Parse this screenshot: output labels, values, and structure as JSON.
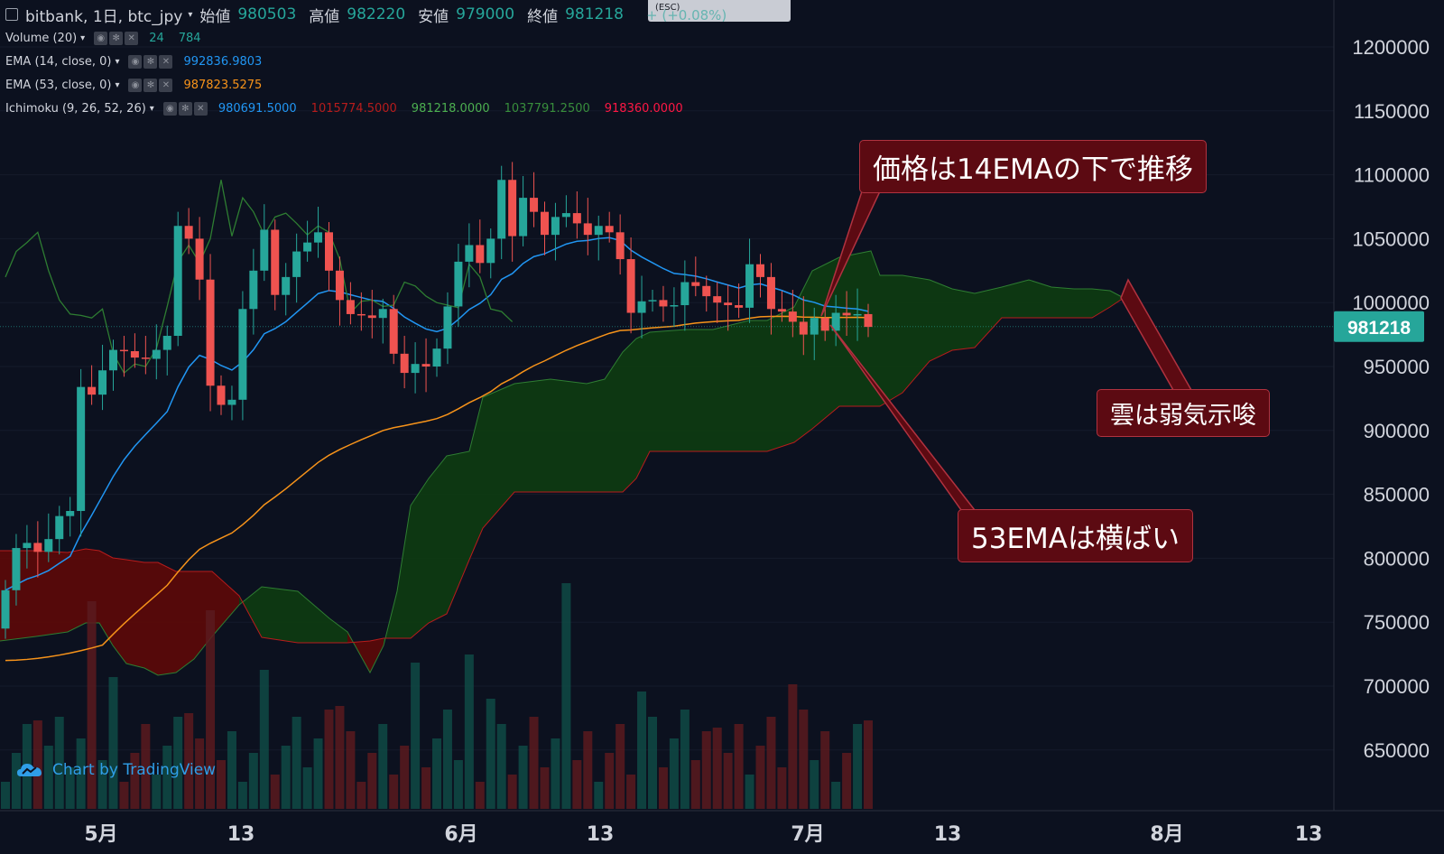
{
  "header": {
    "symbol": "bitbank, 1日, btc_jpy",
    "open_label": "始値",
    "open_value": "980503",
    "high_label": "高値",
    "high_value": "982220",
    "low_label": "安値",
    "low_value": "979000",
    "close_label": "終値",
    "close_value": "981218",
    "change": "+ (+0.08%)",
    "esc_hint": "(ESC)"
  },
  "indicators": [
    {
      "name": "Volume (20)",
      "values": [
        {
          "text": "24",
          "color": "#26a69a"
        },
        {
          "text": "784",
          "color": "#26a69a"
        }
      ]
    },
    {
      "name": "EMA (14, close, 0)",
      "values": [
        {
          "text": "992836.9803",
          "color": "#2196f3"
        }
      ]
    },
    {
      "name": "EMA (53, close, 0)",
      "values": [
        {
          "text": "987823.5275",
          "color": "#f7931a"
        }
      ]
    },
    {
      "name": "Ichimoku (9, 26, 52, 26)",
      "values": [
        {
          "text": "980691.5000",
          "color": "#2196f3"
        },
        {
          "text": "1015774.5000",
          "color": "#b71c1c"
        },
        {
          "text": "981218.0000",
          "color": "#4caf50"
        },
        {
          "text": "1037791.2500",
          "color": "#388e3c"
        },
        {
          "text": "918360.0000",
          "color": "#ff1744"
        }
      ]
    }
  ],
  "annotations": [
    {
      "text": "価格は14EMAの下で推移"
    },
    {
      "text": "雲は弱気示唆"
    },
    {
      "text": "53EMAは横ばい"
    }
  ],
  "watermark": "Chart by TradingView",
  "colors": {
    "background": "#0c111f",
    "up": "#26a69a",
    "down": "#ef5350",
    "ema14": "#2196f3",
    "ema53": "#f7931a",
    "cloud_bull": "#0e3a12",
    "cloud_bear": "#5a0a0a",
    "chikou": "#2e7d32",
    "price_tag": "#26a69a"
  },
  "chart_data": {
    "type": "candlestick",
    "price_axis": {
      "ticks": [
        1200000,
        1150000,
        1100000,
        1050000,
        1000000,
        950000,
        900000,
        850000,
        800000,
        750000,
        700000,
        650000
      ]
    },
    "time_axis": {
      "labels": [
        "5月",
        "13",
        "6月",
        "13",
        "7月",
        "13",
        "8月",
        "13"
      ]
    },
    "last_price": "981218",
    "candles_close": [
      775000,
      808000,
      812000,
      805000,
      815000,
      833000,
      837000,
      934000,
      928000,
      947000,
      963000,
      962000,
      957000,
      956000,
      963000,
      974000,
      1060000,
      1050000,
      1018000,
      935000,
      920000,
      924000,
      995000,
      1025000,
      1057000,
      1006000,
      1020000,
      1040000,
      1047000,
      1055000,
      1025000,
      1002000,
      991000,
      990000,
      988000,
      995000,
      960000,
      945000,
      952000,
      950000,
      964000,
      997000,
      1032000,
      1045000,
      1031000,
      1050000,
      1096000,
      1052000,
      1082000,
      1071000,
      1053000,
      1067000,
      1070000,
      1062000,
      1053000,
      1060000,
      1055000,
      1034000,
      992000,
      1001000,
      1002000,
      997000,
      998000,
      1016000,
      1013000,
      1005000,
      1000000,
      998000,
      996000,
      1030000,
      1020000,
      995000,
      993000,
      985000,
      975000,
      988000,
      978000,
      992000,
      990000,
      991000,
      981000
    ],
    "ema14_last": "992836.9803",
    "ema53_last": "987823.5275"
  }
}
